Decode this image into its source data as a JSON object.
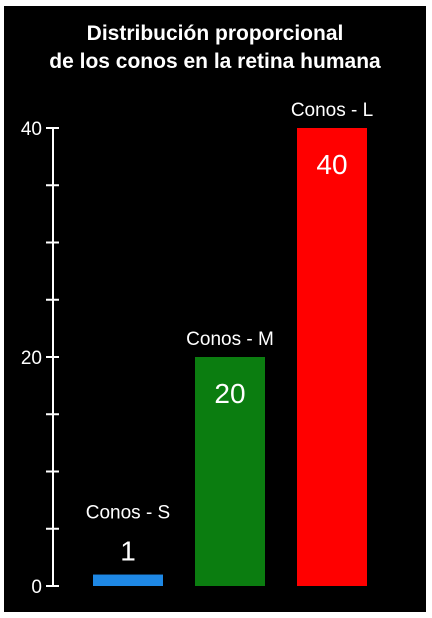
{
  "chart_data": {
    "type": "bar",
    "title_lines": [
      "Distribución proporcional",
      "de los conos en la retina humana"
    ],
    "categories": [
      "Conos - S",
      "Conos - M",
      "Conos - L"
    ],
    "values": [
      1,
      20,
      40
    ],
    "data_labels": [
      "1",
      "20",
      "40"
    ],
    "colors": [
      "#1e88e5",
      "#0b7d10",
      "#ff0000"
    ],
    "data_label_colors": [
      "#ffffff",
      "#ffffff",
      "#ffffff"
    ],
    "ylim": [
      0,
      40
    ],
    "yticks_labeled": [
      0,
      20,
      40
    ],
    "yticks_minor_step": 5,
    "grid": false,
    "legend": "none",
    "background": "#000000",
    "text_color": "#ffffff"
  }
}
